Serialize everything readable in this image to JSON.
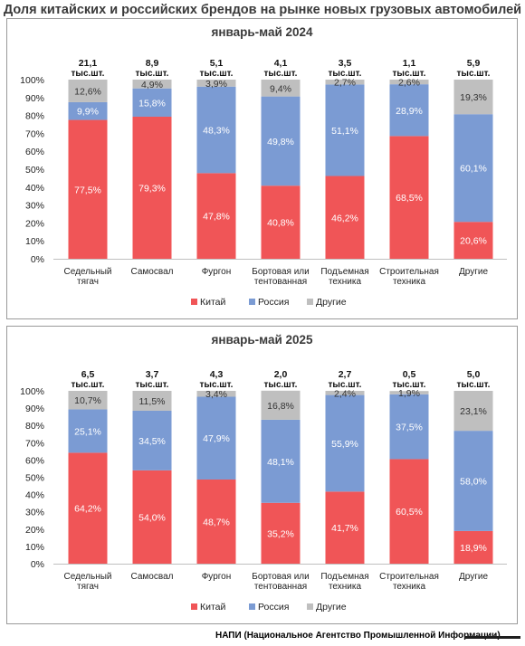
{
  "title": "Доля китайских и российских брендов на рынке новых грузовых автомобилей",
  "source": "НАПИ (Национальное Агентство Промышленной Информации)",
  "colors": {
    "china": "#f05557",
    "russia": "#7b9bd3",
    "other": "#bfbfbf"
  },
  "chart_data": [
    {
      "type": "bar",
      "stacked": true,
      "title": "январь-май 2024",
      "categories": [
        [
          "Седельный",
          "тягач"
        ],
        [
          "Самосвал"
        ],
        [
          "Фургон"
        ],
        [
          "Бортовая или",
          "тентованная"
        ],
        [
          "Подъемная",
          "техника"
        ],
        [
          "Строительная",
          "техника"
        ],
        [
          "Другие"
        ]
      ],
      "totals": [
        [
          "21,1",
          "тыс.шт."
        ],
        [
          "8,9",
          "тыс.шт."
        ],
        [
          "5,1",
          "тыс.шт."
        ],
        [
          "4,1",
          "тыс.шт."
        ],
        [
          "3,5",
          "тыс.шт."
        ],
        [
          "1,1",
          "тыс.шт."
        ],
        [
          "5,9",
          "тыс.шт."
        ]
      ],
      "yticks": [
        "0%",
        "10%",
        "20%",
        "30%",
        "40%",
        "50%",
        "60%",
        "70%",
        "80%",
        "90%",
        "100%"
      ],
      "ylim": [
        0,
        100
      ],
      "series": [
        {
          "name": "Китай",
          "color": "#f05557",
          "values": [
            77.5,
            79.3,
            47.8,
            40.8,
            46.2,
            68.5,
            20.6
          ],
          "labels": [
            "77,5%",
            "79,3%",
            "47,8%",
            "40,8%",
            "46,2%",
            "68,5%",
            "20,6%"
          ]
        },
        {
          "name": "Россия",
          "color": "#7b9bd3",
          "values": [
            9.9,
            15.8,
            48.3,
            49.8,
            51.1,
            28.9,
            60.1
          ],
          "labels": [
            "9,9%",
            "15,8%",
            "48,3%",
            "49,8%",
            "51,1%",
            "28,9%",
            "60,1%"
          ]
        },
        {
          "name": "Другие",
          "color": "#bfbfbf",
          "values": [
            12.6,
            4.9,
            3.9,
            9.4,
            2.7,
            2.6,
            19.3
          ],
          "labels": [
            "12,6%",
            "4,9%",
            "3,9%",
            "9,4%",
            "2,7%",
            "2,6%",
            "19,3%"
          ]
        }
      ],
      "legend": "bottom"
    },
    {
      "type": "bar",
      "stacked": true,
      "title": "январь-май 2025",
      "categories": [
        [
          "Седельный",
          "тягач"
        ],
        [
          "Самосвал"
        ],
        [
          "Фургон"
        ],
        [
          "Бортовая или",
          "тентованная"
        ],
        [
          "Подъемная",
          "техника"
        ],
        [
          "Строительная",
          "техника"
        ],
        [
          "Другие"
        ]
      ],
      "totals": [
        [
          "6,5",
          "тыс.шт."
        ],
        [
          "3,7",
          "тыс.шт."
        ],
        [
          "4,3",
          "тыс.шт."
        ],
        [
          "2,0",
          "тыс.шт."
        ],
        [
          "2,7",
          "тыс.шт."
        ],
        [
          "0,5",
          "тыс.шт."
        ],
        [
          "5,0",
          "тыс.шт."
        ]
      ],
      "yticks": [
        "0%",
        "10%",
        "20%",
        "30%",
        "40%",
        "50%",
        "60%",
        "70%",
        "80%",
        "90%",
        "100%"
      ],
      "ylim": [
        0,
        100
      ],
      "series": [
        {
          "name": "Китай",
          "color": "#f05557",
          "values": [
            64.2,
            54.0,
            48.7,
            35.2,
            41.7,
            60.5,
            18.9
          ],
          "labels": [
            "64,2%",
            "54,0%",
            "48,7%",
            "35,2%",
            "41,7%",
            "60,5%",
            "18,9%"
          ]
        },
        {
          "name": "Россия",
          "color": "#7b9bd3",
          "values": [
            25.1,
            34.5,
            47.9,
            48.1,
            55.9,
            37.5,
            58.0
          ],
          "labels": [
            "25,1%",
            "34,5%",
            "47,9%",
            "48,1%",
            "55,9%",
            "37,5%",
            "58,0%"
          ]
        },
        {
          "name": "Другие",
          "color": "#bfbfbf",
          "values": [
            10.7,
            11.5,
            3.4,
            16.8,
            2.4,
            1.9,
            23.1
          ],
          "labels": [
            "10,7%",
            "11,5%",
            "3,4%",
            "16,8%",
            "2,4%",
            "1,9%",
            "23,1%"
          ]
        }
      ],
      "legend": "bottom"
    }
  ]
}
